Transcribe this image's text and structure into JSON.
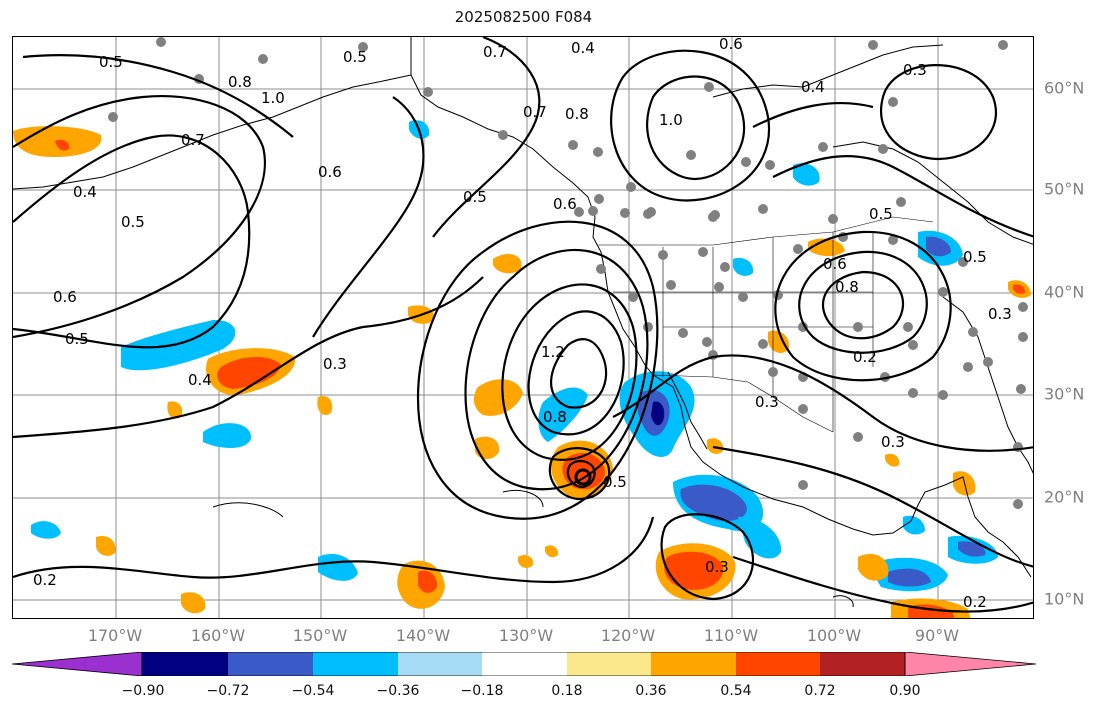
{
  "title": "2025082500 F084",
  "map": {
    "lon_labels": [
      "170°W",
      "160°W",
      "150°W",
      "140°W",
      "130°W",
      "120°W",
      "110°W",
      "100°W",
      "90°W"
    ],
    "lat_labels": [
      "60°N",
      "50°N",
      "40°N",
      "30°N",
      "20°N",
      "10°N"
    ],
    "contour_labels": [
      "0.4",
      "0.6",
      "0.5",
      "0.7",
      "0.8",
      "1.0",
      "0.4",
      "0.3",
      "0.5",
      "0.6",
      "0.4",
      "0.5",
      "0.6",
      "0.7",
      "0.6",
      "0.8",
      "0.5",
      "0.2",
      "0.3",
      "0.3",
      "0.5",
      "0.8",
      "1.2",
      "0.3",
      "0.4",
      "0.6",
      "0.5",
      "0.3",
      "0.2",
      "0.3",
      "0.2",
      "0.8",
      "1.0",
      "0.5",
      "0.7",
      "0.5"
    ],
    "colors": {
      "land_outline": "#000000",
      "grid": "#8c8c8c",
      "station_dot": "#808080",
      "contour": "#000000"
    }
  },
  "colorbar": {
    "tick_labels": [
      "−0.90",
      "−0.72",
      "−0.54",
      "−0.36",
      "−0.18",
      "0.18",
      "0.36",
      "0.54",
      "0.72",
      "0.90"
    ],
    "colors": [
      "#9b30d0",
      "#000080",
      "#3a5bc7",
      "#00bfff",
      "#a7dcf7",
      "#ffffff",
      "#fbe88a",
      "#ffa500",
      "#ff4500",
      "#b22222",
      "#ff85a8"
    ]
  }
}
